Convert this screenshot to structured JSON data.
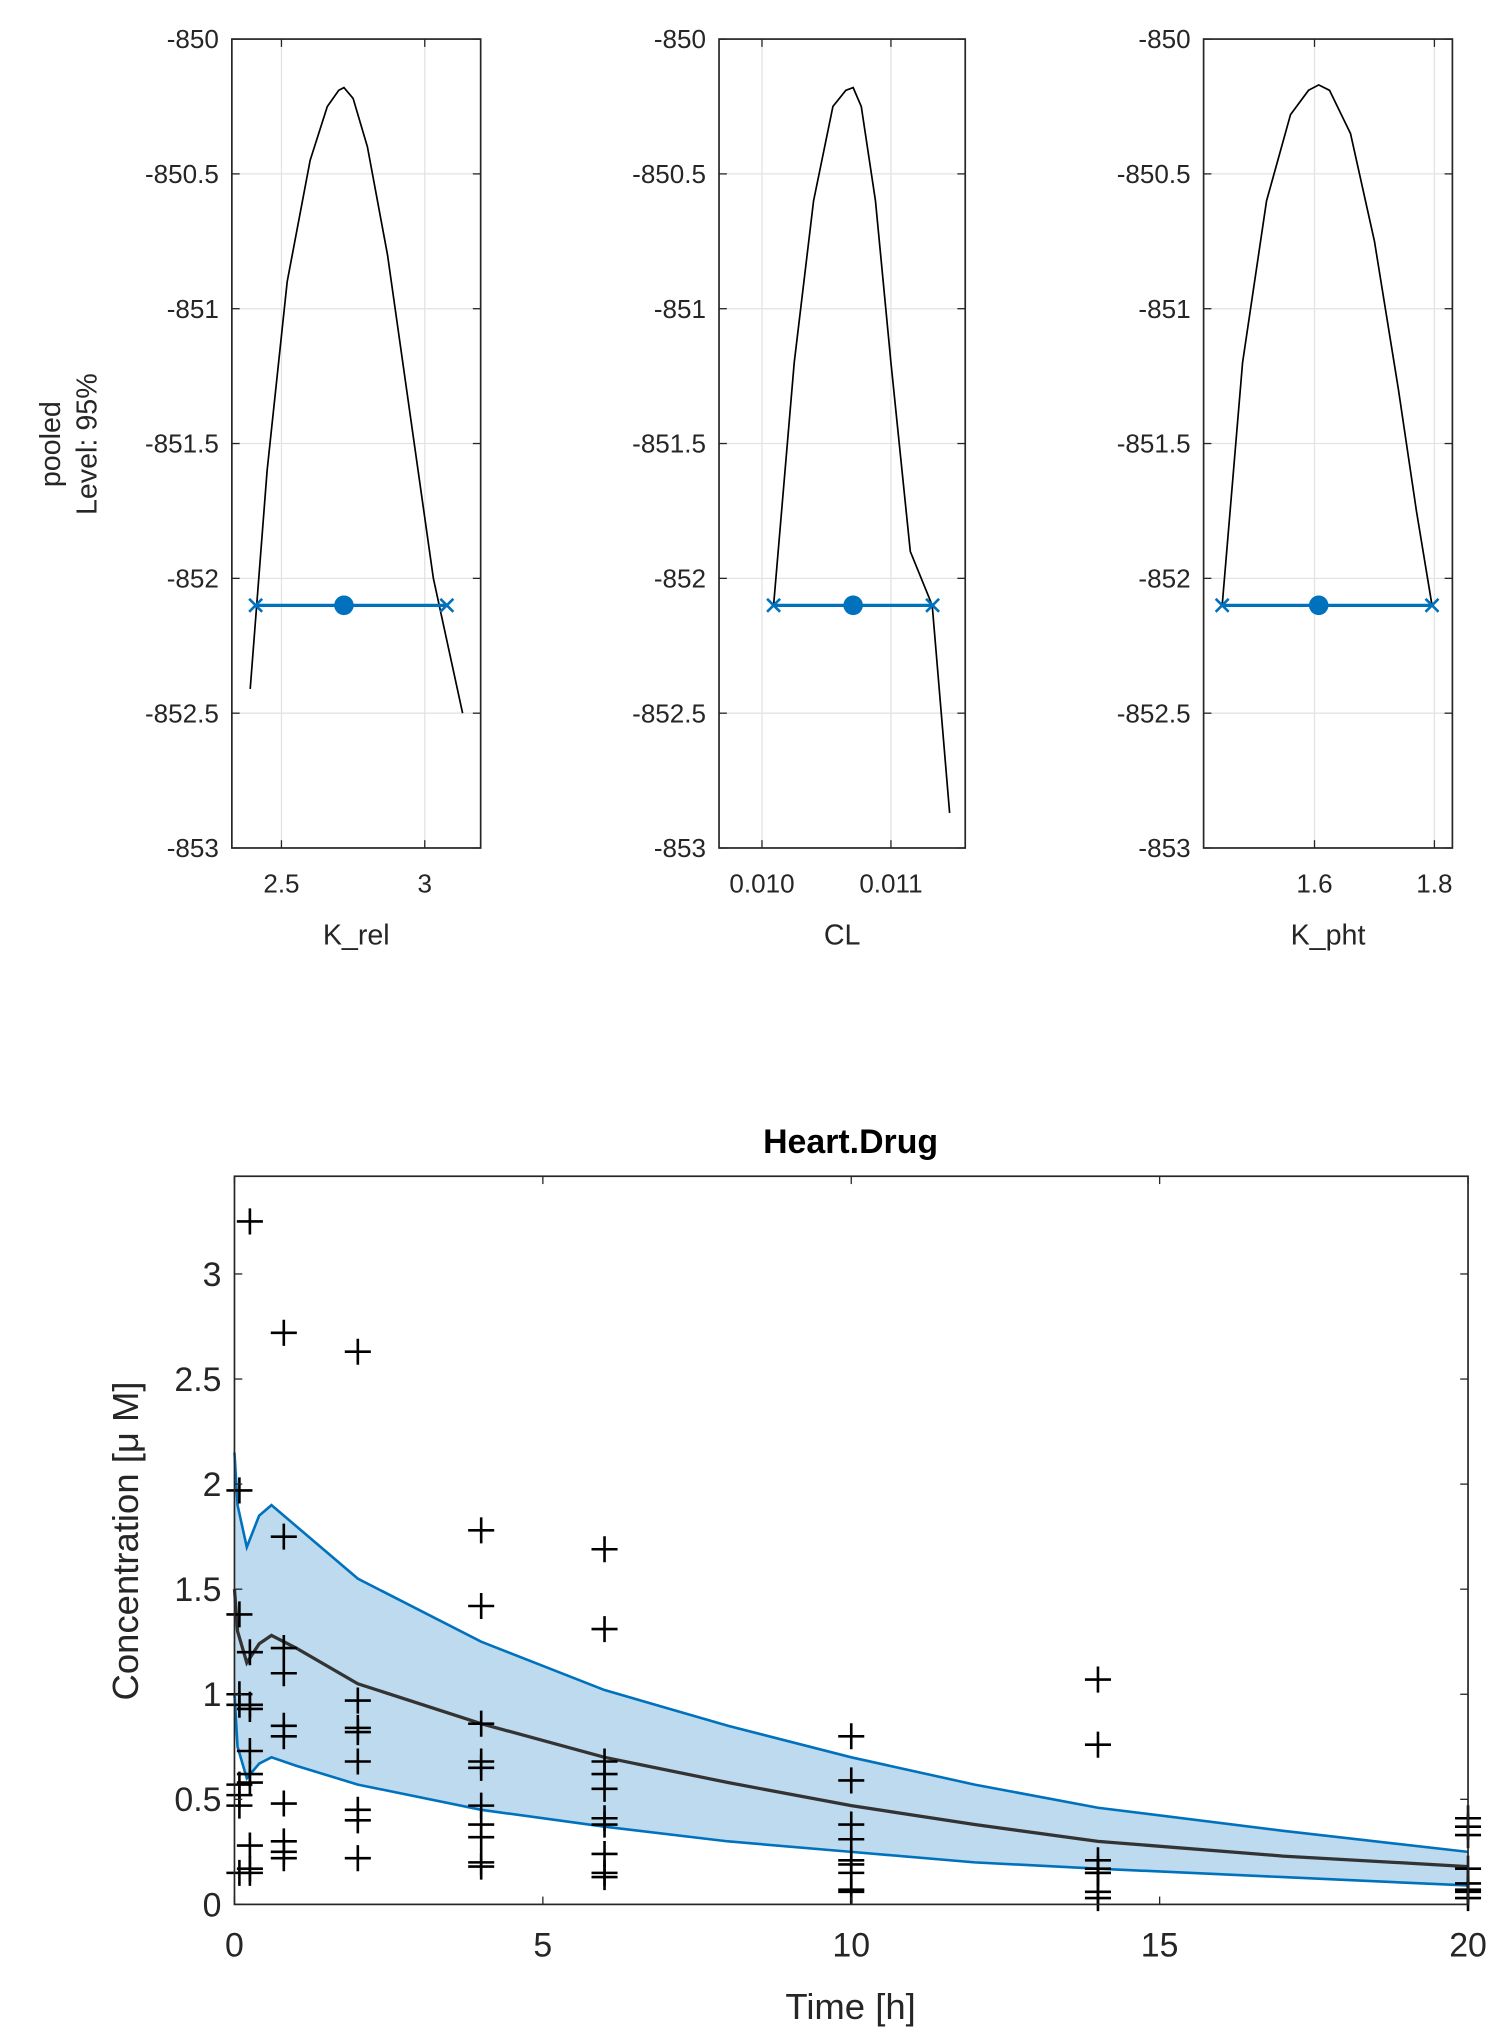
{
  "chart_data": [
    {
      "type": "line",
      "ylabel_lines": [
        "pooled",
        "Level: 95%"
      ],
      "xlabel": "K_rel",
      "xlim": [
        2.327,
        3.195
      ],
      "ylim": [
        -853,
        -850
      ],
      "xticks": [
        2.5,
        3
      ],
      "xtick_labels": [
        "2.5",
        "3"
      ],
      "yticks": [
        -853,
        -852.5,
        -852,
        -851.5,
        -851,
        -850.5,
        -850
      ],
      "ytick_labels": [
        "-853",
        "-852.5",
        "-852",
        "-851.5",
        "-851",
        "-850.5",
        "-850"
      ],
      "grid": true,
      "profile": {
        "x": [
          2.391,
          2.45,
          2.52,
          2.6,
          2.66,
          2.7,
          2.718,
          2.75,
          2.8,
          2.87,
          2.95,
          3.03,
          3.132
        ],
        "y": [
          -852.41,
          -851.6,
          -850.9,
          -850.45,
          -850.25,
          -850.19,
          -850.18,
          -850.22,
          -850.4,
          -850.8,
          -851.4,
          -852.0,
          -852.5
        ]
      },
      "ci": {
        "lower": 2.41,
        "estimate": 2.718,
        "upper": 3.077,
        "level": -852.1
      },
      "colors": {
        "profile": "#000000",
        "ci": "#0072BD"
      }
    },
    {
      "type": "line",
      "xlabel": "CL",
      "xlim": [
        0.009667,
        0.011576
      ],
      "ylim": [
        -853,
        -850
      ],
      "xticks": [
        0.01,
        0.011
      ],
      "xtick_labels": [
        "0.010",
        "0.011"
      ],
      "yticks": [
        -853,
        -852.5,
        -852,
        -851.5,
        -851,
        -850.5,
        -850
      ],
      "ytick_labels": [
        "-853",
        "-852.5",
        "-852",
        "-851.5",
        "-851",
        "-850.5",
        "-850"
      ],
      "grid": true,
      "profile": {
        "x": [
          0.01009,
          0.01025,
          0.0104,
          0.01055,
          0.01065,
          0.010707,
          0.01077,
          0.01088,
          0.011,
          0.01115,
          0.01132,
          0.011455
        ],
        "y": [
          -852.1,
          -851.2,
          -850.6,
          -850.25,
          -850.19,
          -850.18,
          -850.25,
          -850.6,
          -851.2,
          -851.9,
          -852.1,
          -852.87
        ]
      },
      "ci": {
        "lower": 0.01009,
        "estimate": 0.010707,
        "upper": 0.011323,
        "level": -852.1
      },
      "colors": {
        "profile": "#000000",
        "ci": "#0072BD"
      }
    },
    {
      "type": "line",
      "xlabel": "K_pht",
      "xlim": [
        1.415,
        1.83
      ],
      "ylim": [
        -853,
        -850
      ],
      "xticks": [
        1.6,
        1.8
      ],
      "xtick_labels": [
        "1.6",
        "1.8"
      ],
      "yticks": [
        -853,
        -852.5,
        -852,
        -851.5,
        -851,
        -850.5,
        -850
      ],
      "ytick_labels": [
        "-853",
        "-852.5",
        "-852",
        "-851.5",
        "-851",
        "-850.5",
        "-850"
      ],
      "grid": true,
      "profile": {
        "x": [
          1.446,
          1.48,
          1.52,
          1.56,
          1.59,
          1.607,
          1.625,
          1.66,
          1.7,
          1.74,
          1.77,
          1.796
        ],
        "y": [
          -852.1,
          -851.2,
          -850.6,
          -850.28,
          -850.19,
          -850.17,
          -850.19,
          -850.35,
          -850.75,
          -851.3,
          -851.75,
          -852.1
        ]
      },
      "ci": {
        "lower": 1.446,
        "estimate": 1.607,
        "upper": 1.796,
        "level": -852.1
      },
      "colors": {
        "profile": "#000000",
        "ci": "#0072BD"
      }
    },
    {
      "type": "scatter",
      "title": "Heart.Drug",
      "xlabel": "Time [h]",
      "ylabel": "Concentration [μ M]",
      "xlim": [
        0,
        20
      ],
      "ylim": [
        0,
        3.465
      ],
      "xticks": [
        0,
        5,
        10,
        15,
        20
      ],
      "xtick_labels": [
        "0",
        "5",
        "10",
        "15",
        "20"
      ],
      "yticks": [
        0,
        0.5,
        1,
        1.5,
        2,
        2.5,
        3
      ],
      "ytick_labels": [
        "0",
        "0.5",
        "1",
        "1.5",
        "2",
        "2.5",
        "3"
      ],
      "grid": false,
      "observations": [
        {
          "t": 0.08,
          "values": [
            1.97,
            1.38,
            1.0,
            0.95,
            0.57,
            0.52,
            0.47,
            0.15
          ]
        },
        {
          "t": 0.25,
          "values": [
            3.25,
            1.2,
            0.95,
            0.93,
            0.73,
            0.62,
            0.58,
            0.28,
            0.17,
            0.15
          ]
        },
        {
          "t": 0.8,
          "values": [
            2.72,
            1.75,
            1.22,
            1.1,
            0.85,
            0.8,
            0.48,
            0.3,
            0.25,
            0.22
          ]
        },
        {
          "t": 2,
          "values": [
            2.63,
            0.97,
            0.84,
            0.82,
            0.68,
            0.45,
            0.4,
            0.22
          ]
        },
        {
          "t": 4,
          "values": [
            1.78,
            1.42,
            0.86,
            0.68,
            0.65,
            0.47,
            0.38,
            0.32,
            0.2,
            0.18
          ]
        },
        {
          "t": 6,
          "values": [
            1.69,
            1.31,
            0.68,
            0.62,
            0.55,
            0.41,
            0.38,
            0.24,
            0.15,
            0.13
          ]
        },
        {
          "t": 10,
          "values": [
            0.8,
            0.59,
            0.38,
            0.31,
            0.21,
            0.19,
            0.15,
            0.07,
            0.06
          ]
        },
        {
          "t": 14,
          "values": [
            1.07,
            0.76,
            0.21,
            0.17,
            0.15,
            0.15,
            0.06,
            0.03
          ]
        },
        {
          "t": 20,
          "values": [
            0.41,
            0.37,
            0.33,
            0.17,
            0.1,
            0.07,
            0.06,
            0.03
          ]
        }
      ],
      "median": {
        "t": [
          0,
          0.05,
          0.2,
          0.4,
          0.6,
          1,
          2,
          4,
          6,
          8,
          10,
          12,
          14,
          17,
          20
        ],
        "y": [
          1.5,
          1.3,
          1.15,
          1.24,
          1.28,
          1.22,
          1.05,
          0.86,
          0.7,
          0.58,
          0.47,
          0.38,
          0.3,
          0.23,
          0.18
        ]
      },
      "upper": {
        "t": [
          0,
          0.05,
          0.2,
          0.4,
          0.6,
          1,
          2,
          4,
          6,
          8,
          10,
          12,
          14,
          17,
          20
        ],
        "y": [
          2.15,
          1.9,
          1.7,
          1.85,
          1.9,
          1.8,
          1.55,
          1.25,
          1.02,
          0.85,
          0.7,
          0.57,
          0.46,
          0.35,
          0.25
        ]
      },
      "lower": {
        "t": [
          0,
          0.05,
          0.2,
          0.4,
          0.6,
          1,
          2,
          4,
          6,
          8,
          10,
          12,
          14,
          17,
          20
        ],
        "y": [
          1.0,
          0.75,
          0.6,
          0.67,
          0.7,
          0.66,
          0.57,
          0.45,
          0.37,
          0.3,
          0.25,
          0.2,
          0.17,
          0.13,
          0.09
        ]
      },
      "colors": {
        "band_fill": "#BDDAEE",
        "band_edge": "#0072BD",
        "median": "#333333",
        "markers": "#000000"
      }
    }
  ]
}
